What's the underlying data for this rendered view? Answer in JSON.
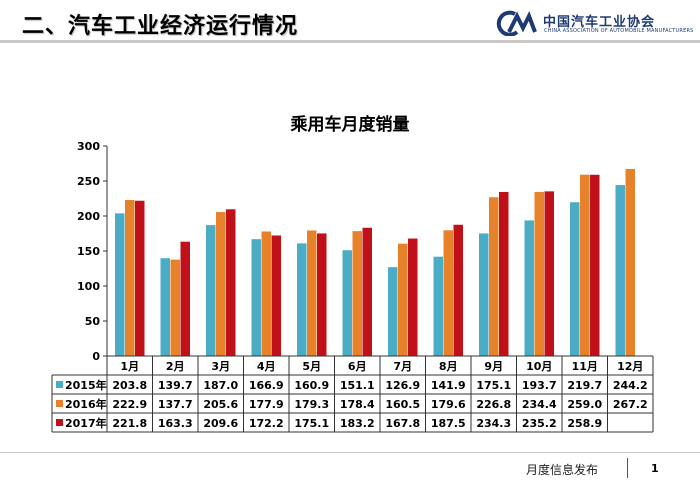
{
  "header": {
    "title": "二、汽车工业经济运行情况",
    "logo_cn": "中国汽车工业协会",
    "logo_en": "CHINA ASSOCIATION OF AUTOMOBILE MANUFACTURERS"
  },
  "footer": {
    "text": "月度信息发布",
    "page_number": "1"
  },
  "chart_data": {
    "type": "bar",
    "title": "乘用车月度销量",
    "categories": [
      "1月",
      "2月",
      "3月",
      "4月",
      "5月",
      "6月",
      "7月",
      "8月",
      "9月",
      "10月",
      "11月",
      "12月"
    ],
    "series": [
      {
        "name": "2015年",
        "color": "#4bacc6",
        "values": [
          203.8,
          139.7,
          187.0,
          166.9,
          160.9,
          151.1,
          126.9,
          141.9,
          175.1,
          193.7,
          219.7,
          244.2
        ],
        "labels": [
          "203.8",
          "139.7",
          "187.0",
          "166.9",
          "160.9",
          "151.1",
          "126.9",
          "141.9",
          "175.1",
          "193.7",
          "219.7",
          "244.2"
        ]
      },
      {
        "name": "2016年",
        "color": "#e8822a",
        "values": [
          222.9,
          137.7,
          205.6,
          177.9,
          179.3,
          178.4,
          160.5,
          179.6,
          226.8,
          234.4,
          259.0,
          267.2
        ],
        "labels": [
          "222.9",
          "137.7",
          "205.6",
          "177.9",
          "179.3",
          "178.4",
          "160.5",
          "179.6",
          "226.8",
          "234.4",
          "259.0",
          "267.2"
        ]
      },
      {
        "name": "2017年",
        "color": "#c0101a",
        "values": [
          221.8,
          163.3,
          209.6,
          172.2,
          175.1,
          183.2,
          167.8,
          187.5,
          234.3,
          235.2,
          258.9,
          null
        ],
        "labels": [
          "221.8",
          "163.3",
          "209.6",
          "172.2",
          "175.1",
          "183.2",
          "167.8",
          "187.5",
          "234.3",
          "235.2",
          "258.9",
          ""
        ]
      }
    ],
    "ylim": [
      0,
      300
    ],
    "yticks": [
      "0",
      "50",
      "100",
      "150",
      "200",
      "250",
      "300"
    ],
    "grid": false,
    "legend": "data-table"
  }
}
